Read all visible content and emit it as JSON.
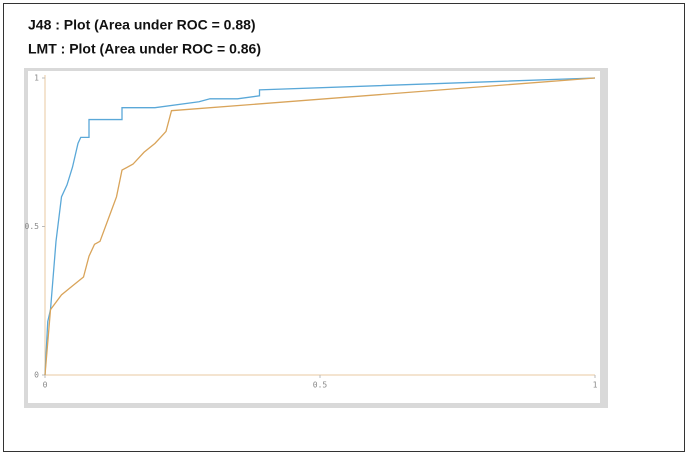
{
  "chart_data": {
    "type": "line",
    "series": [
      {
        "name": "J48 : Plot (Area under ROC = 0.88)",
        "color": "#5aa8d8",
        "x": [
          0,
          0.005,
          0.01,
          0.02,
          0.03,
          0.04,
          0.05,
          0.06,
          0.065,
          0.08,
          0.08,
          0.14,
          0.14,
          0.2,
          0.28,
          0.3,
          0.35,
          0.39,
          0.39,
          1
        ],
        "values": [
          0,
          0.18,
          0.22,
          0.45,
          0.6,
          0.64,
          0.7,
          0.78,
          0.8,
          0.8,
          0.86,
          0.86,
          0.9,
          0.9,
          0.92,
          0.93,
          0.93,
          0.94,
          0.96,
          1
        ]
      },
      {
        "name": "LMT : Plot (Area under ROC = 0.86)",
        "color": "#d9a45a",
        "x": [
          0,
          0.01,
          0.03,
          0.05,
          0.07,
          0.08,
          0.09,
          0.1,
          0.12,
          0.13,
          0.14,
          0.16,
          0.18,
          0.2,
          0.21,
          0.22,
          0.23,
          1
        ],
        "values": [
          0,
          0.22,
          0.27,
          0.3,
          0.33,
          0.4,
          0.44,
          0.45,
          0.55,
          0.6,
          0.69,
          0.71,
          0.75,
          0.78,
          0.8,
          0.82,
          0.89,
          1
        ]
      }
    ],
    "xlim": [
      0,
      1
    ],
    "ylim": [
      0,
      1
    ],
    "xticks": [
      0,
      0.5,
      1
    ],
    "yticks": [
      0,
      0.5,
      1
    ]
  }
}
